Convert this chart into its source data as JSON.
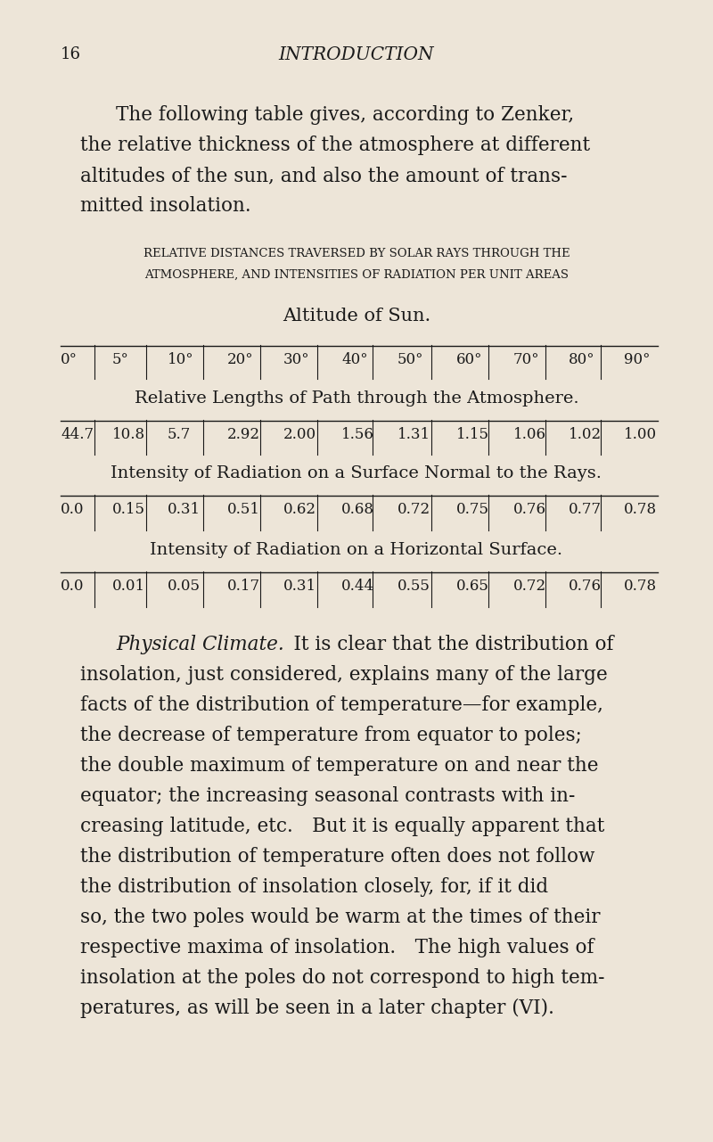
{
  "page_number": "16",
  "header_title": "INTRODUCTION",
  "bg_color": "#ede5d8",
  "text_color": "#1a1a1a",
  "intro_lines": [
    "The following table gives, according to Zenker,",
    "the relative thickness of the atmosphere at different",
    "altitudes of the sun, and also the amount of trans-",
    "mitted insolation."
  ],
  "table_title_line1": "RELATIVE DISTANCES TRAVERSED BY SOLAR RAYS THROUGH THE",
  "table_title_line2": "ATMOSPHERE, AND INTENSITIES OF RADIATION PER UNIT AREAS",
  "altitude_label": "Altitude of Sun.",
  "altitudes": [
    "0°",
    "5°",
    "10°",
    "20°",
    "30°",
    "40°",
    "50°",
    "60°",
    "70°",
    "80°",
    "90°"
  ],
  "row1_label": "Relative Lengths of Path through the Atmosphere.",
  "row1_values": [
    "44.7",
    "10.8",
    "5.7",
    "2.92",
    "2.00",
    "1.56",
    "1.31",
    "1.15",
    "1.06",
    "1.02",
    "1.00"
  ],
  "row2_label": "Intensity of Radiation on a Surface Normal to the Rays.",
  "row2_values": [
    "0.0",
    "0.15",
    "0.31",
    "0.51",
    "0.62",
    "0.68",
    "0.72",
    "0.75",
    "0.76",
    "0.77",
    "0.78"
  ],
  "row3_label": "Intensity of Radiation on a Horizontal Surface.",
  "row3_values": [
    "0.0",
    "0.01",
    "0.05",
    "0.17",
    "0.31",
    "0.44",
    "0.55",
    "0.65",
    "0.72",
    "0.76",
    "0.78"
  ],
  "body_line1_italic": "Physical Climate.",
  "body_line1_rest": " It is clear that the distribution of",
  "body_lines": [
    "insolation, just considered, explains many of the large",
    "facts of the distribution of temperature—for example,",
    "the decrease of temperature from equator to poles;",
    "the double maximum of temperature on and near the",
    "equator; the increasing seasonal contrasts with in-",
    "creasing latitude, etc. But it is equally apparent that",
    "the distribution of temperature often does not follow",
    "the distribution of insolation closely, for, if it did",
    "so, the two poles would be warm at the times of their",
    "respective maxima of insolation. The high values of",
    "insolation at the poles do not correspond to high tem-",
    "peratures, as will be seen in a later chapter (VI)."
  ]
}
